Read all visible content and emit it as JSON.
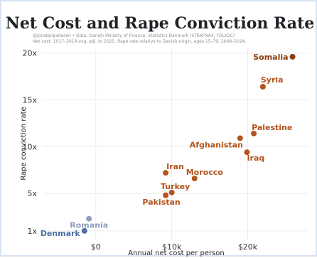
{
  "chart_data": {
    "type": "scatter",
    "title": "Net Cost and Rape Conviction Rate",
    "subtitle_lines": [
      "@jonatanpallesen • Data: Danish Ministry of Finance, Statistics Denmark (STRAFNA4, FOLK1C)",
      "Net cost: 2017–2019 avg, adj. to 2025. Rape rate relative to Danish-origin, ages 15–79, 2008–2024."
    ],
    "xlabel": "Annual net cost per person",
    "ylabel": "Rape conviction rate",
    "xlim": [
      -7000,
      28000
    ],
    "ylim": [
      0,
      20.5
    ],
    "x_ticks": [
      {
        "v": 0,
        "label": "$0"
      },
      {
        "v": 10000,
        "label": "$10k"
      },
      {
        "v": 20000,
        "label": "$20k"
      }
    ],
    "y_ticks": [
      {
        "v": 1,
        "label": "1x"
      },
      {
        "v": 5,
        "label": "5x"
      },
      {
        "v": 10,
        "label": "10x"
      },
      {
        "v": 15,
        "label": "15x"
      },
      {
        "v": 20,
        "label": "20x"
      }
    ],
    "grid": true,
    "colors": {
      "western": "#4d6fa3",
      "western_light": "#8aa0bd",
      "mena": "#b4541c",
      "mena_dark": "#8a3d10",
      "grid": "#ececec"
    },
    "points": [
      {
        "label": "Denmark",
        "x": -1500,
        "y": 1.0,
        "color": "#4d6fa3",
        "anchor": "end",
        "dx": -6,
        "dy": 7
      },
      {
        "label": "Romania",
        "x": -900,
        "y": 2.3,
        "color": "#8aa0bd",
        "anchor": "middle",
        "dx": 0,
        "dy": 13
      },
      {
        "label": "Pakistan",
        "x": 9200,
        "y": 4.8,
        "color": "#b4541c",
        "anchor": "middle",
        "dx": -6,
        "dy": 13
      },
      {
        "label": "Turkey",
        "x": 10000,
        "y": 5.1,
        "color": "#b4541c",
        "anchor": "middle",
        "dx": 5,
        "dy": -5
      },
      {
        "label": "Iran",
        "x": 9200,
        "y": 7.2,
        "color": "#b4541c",
        "anchor": "start",
        "dx": 1,
        "dy": -5
      },
      {
        "label": "Morocco",
        "x": 13000,
        "y": 6.6,
        "color": "#b4541c",
        "anchor": "start",
        "dx": -12,
        "dy": -5
      },
      {
        "label": "Afghanistan",
        "x": 19000,
        "y": 10.9,
        "color": "#b4541c",
        "anchor": "end",
        "dx": 4,
        "dy": 13
      },
      {
        "label": "Palestine",
        "x": 20800,
        "y": 11.4,
        "color": "#b4541c",
        "anchor": "start",
        "dx": -3,
        "dy": -5
      },
      {
        "label": "Iraq",
        "x": 19900,
        "y": 9.4,
        "color": "#b4541c",
        "anchor": "start",
        "dx": 0,
        "dy": 12
      },
      {
        "label": "Syria",
        "x": 22000,
        "y": 16.4,
        "color": "#b4541c",
        "anchor": "start",
        "dx": -3,
        "dy": -6
      },
      {
        "label": "Somalia",
        "x": 25900,
        "y": 19.6,
        "color": "#8a3d10",
        "anchor": "end",
        "dx": -6,
        "dy": 4
      }
    ]
  }
}
